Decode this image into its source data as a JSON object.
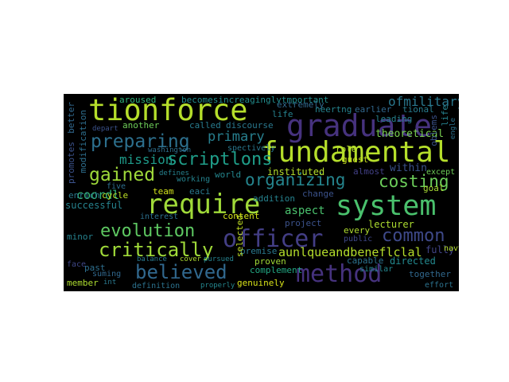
{
  "background": "#000000",
  "words": [
    {
      "text": "tionforce",
      "color": "#b5de2b"
    },
    {
      "text": "graduate",
      "color": "#46327e"
    },
    {
      "text": "fundamental",
      "color": "#b5de2b"
    },
    {
      "text": "require",
      "color": "#a0da39"
    },
    {
      "text": "system",
      "color": "#4ac16d"
    },
    {
      "text": "officer",
      "color": "#433e85"
    },
    {
      "text": "method",
      "color": "#46327e"
    },
    {
      "text": "critically",
      "color": "#a0da39"
    },
    {
      "text": "evolution",
      "color": "#5ec962"
    },
    {
      "text": "preparing",
      "color": "#2d708e"
    },
    {
      "text": "organizing",
      "color": "#25858e"
    },
    {
      "text": "costing",
      "color": "#6ccd5a"
    },
    {
      "text": "gained",
      "color": "#9fda3a"
    },
    {
      "text": "scriptlons",
      "color": "#1f9e89"
    },
    {
      "text": "believed",
      "color": "#31688e"
    },
    {
      "text": "common",
      "color": "#3e4989"
    },
    {
      "text": "mission",
      "color": "#1e9b8a"
    },
    {
      "text": "primary",
      "color": "#277f8e"
    },
    {
      "text": "aunlqueandbeneflclal",
      "color": "#b5de2b"
    },
    {
      "text": "ofmilitary",
      "color": "#2a788e"
    },
    {
      "text": "coordl",
      "color": "#35b779"
    },
    {
      "text": "aspect",
      "color": "#4ac16d"
    },
    {
      "text": "theoretical",
      "color": "#7ad151"
    },
    {
      "text": "within",
      "color": "#3b528b"
    },
    {
      "text": "instituted",
      "color": "#b5de2b"
    },
    {
      "text": "successful",
      "color": "#26828e"
    },
    {
      "text": "lecturer",
      "color": "#addc30"
    },
    {
      "text": "directed",
      "color": "#23898e"
    },
    {
      "text": "fully",
      "color": "#414487"
    },
    {
      "text": "genuinely",
      "color": "#d8e219"
    },
    {
      "text": "proven",
      "color": "#a2da37"
    },
    {
      "text": "together",
      "color": "#31688e"
    },
    {
      "text": "effort",
      "color": "#2c728e"
    },
    {
      "text": "member",
      "color": "#addc30"
    },
    {
      "text": "past",
      "color": "#2e6f8e"
    },
    {
      "text": "another",
      "color": "#6ece58"
    },
    {
      "text": "called",
      "color": "#287c8e"
    },
    {
      "text": "discourse",
      "color": "#2a788e"
    },
    {
      "text": "aroused",
      "color": "#2fb47c"
    },
    {
      "text": "becomesincreaginglytmportant",
      "color": "#228d8d"
    },
    {
      "text": "extremely",
      "color": "#31688e"
    },
    {
      "text": "life",
      "color": "#26828e"
    },
    {
      "text": "leading",
      "color": "#26828e"
    },
    {
      "text": "earlier",
      "color": "#31688e"
    },
    {
      "text": "tional",
      "color": "#287c8e"
    },
    {
      "text": "neertng",
      "color": "#25838e"
    },
    {
      "text": "guest",
      "color": "#c8e020"
    },
    {
      "text": "role",
      "color": "#b5de2b"
    },
    {
      "text": "almost",
      "color": "#424086"
    },
    {
      "text": "except",
      "color": "#6ece58"
    },
    {
      "text": "goal",
      "color": "#a8db34"
    },
    {
      "text": "change",
      "color": "#3b528b"
    },
    {
      "text": "addition",
      "color": "#26828e"
    },
    {
      "text": "team",
      "color": "#d2e21b"
    },
    {
      "text": "eaci",
      "color": "#2a788e"
    },
    {
      "text": "working",
      "color": "#25838e"
    },
    {
      "text": "world",
      "color": "#24868e"
    },
    {
      "text": "five",
      "color": "#2e6e8e"
    },
    {
      "text": "cycle",
      "color": "#bddf26"
    },
    {
      "text": "enrich",
      "color": "#2a788e"
    },
    {
      "text": "minor",
      "color": "#26828e"
    },
    {
      "text": "interest",
      "color": "#2d708e"
    },
    {
      "text": "content",
      "color": "#d5e21a"
    },
    {
      "text": "project",
      "color": "#3b528b"
    },
    {
      "text": "every",
      "color": "#b0dd2f"
    },
    {
      "text": "public",
      "color": "#3f4788"
    },
    {
      "text": "capable",
      "color": "#2c728e"
    },
    {
      "text": "premise",
      "color": "#2a788e"
    },
    {
      "text": "complement",
      "color": "#22a884"
    },
    {
      "text": "similar",
      "color": "#24868e"
    },
    {
      "text": "balance",
      "color": "#2a788e"
    },
    {
      "text": "cover",
      "color": "#addc30"
    },
    {
      "text": "pursued",
      "color": "#26828e"
    },
    {
      "text": "definition",
      "color": "#2c728e"
    },
    {
      "text": "properly",
      "color": "#24868e"
    },
    {
      "text": "suming",
      "color": "#31688e"
    },
    {
      "text": "face",
      "color": "#3f4788"
    },
    {
      "text": "int",
      "color": "#2a788e"
    },
    {
      "text": "navy",
      "color": "#b5de2b"
    },
    {
      "text": "washington",
      "color": "#2e6f8e"
    },
    {
      "text": "defines",
      "color": "#26828e"
    },
    {
      "text": "depart",
      "color": "#3b528b"
    },
    {
      "text": "spectively",
      "color": "#2a788e"
    },
    {
      "text": "selected",
      "color": "#c2df23"
    },
    {
      "text": "promotes",
      "color": "#3b528b"
    },
    {
      "text": "better",
      "color": "#31688e"
    },
    {
      "text": "modification",
      "color": "#2e6f8e"
    },
    {
      "text": "oblems",
      "color": "#3b528b"
    },
    {
      "text": "life",
      "color": "#26828e"
    },
    {
      "text": "engle",
      "color": "#2c728e"
    }
  ]
}
